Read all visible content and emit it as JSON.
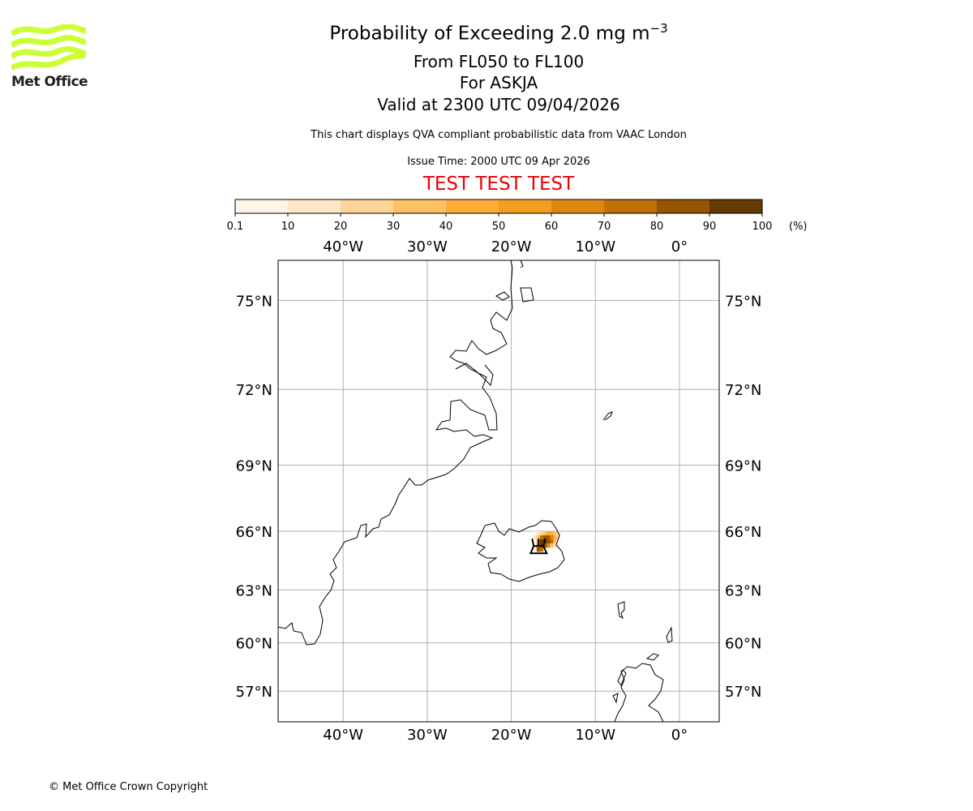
{
  "logo": {
    "text": "Met Office",
    "color": "#ccff33"
  },
  "header": {
    "title_prefix": "Probability of Exceeding 2.0 mg m",
    "title_exponent": "−3",
    "flight_levels": "From FL050 to FL100",
    "volcano": "For ASKJA",
    "valid_time": "Valid at 2300 UTC 09/04/2026",
    "description": "This chart displays QVA compliant probabilistic data from VAAC London",
    "issue_time": "Issue Time: 2000 UTC 09 Apr 2026",
    "test_banner": "TEST TEST TEST",
    "test_color": "#e8000b"
  },
  "footer": {
    "copyright": "© Met Office Crown Copyright"
  },
  "chart_data": {
    "type": "heatmap",
    "title": "Probability of Exceeding 2.0 mg m-3",
    "projection": "mercator",
    "lon_range": [
      -47.7,
      4.7
    ],
    "lat_range": [
      55.7,
      76.3
    ],
    "grid": true,
    "colorbar": {
      "boundaries": [
        "0.1",
        "10",
        "20",
        "30",
        "40",
        "50",
        "60",
        "70",
        "80",
        "90",
        "100"
      ],
      "unit_label": "(%)",
      "colors": [
        "#fff5e6",
        "#fee6c6",
        "#fed496",
        "#fec065",
        "#fdad38",
        "#f49d20",
        "#dc870f",
        "#bf6f05",
        "#955502",
        "#653b02"
      ]
    },
    "lon_ticks": [
      {
        "value": -40,
        "label": "40°W"
      },
      {
        "value": -30,
        "label": "30°W"
      },
      {
        "value": -20,
        "label": "20°W"
      },
      {
        "value": -10,
        "label": "10°W"
      },
      {
        "value": 0,
        "label": "0°"
      }
    ],
    "lat_ticks": [
      {
        "value": 75,
        "label": "75°N"
      },
      {
        "value": 72,
        "label": "72°N"
      },
      {
        "value": 69,
        "label": "69°N"
      },
      {
        "value": 66,
        "label": "66°N"
      },
      {
        "value": 63,
        "label": "63°N"
      },
      {
        "value": 60,
        "label": "60°N"
      },
      {
        "value": 57,
        "label": "57°N"
      }
    ],
    "probability_grid": {
      "lon_start": -17.4,
      "lon_step": 0.4,
      "lat_top": 66.0,
      "lat_step": 0.2,
      "values": [
        [
          5,
          15,
          25,
          35,
          45,
          45,
          35,
          15
        ],
        [
          15,
          35,
          75,
          85,
          85,
          65,
          45,
          15
        ],
        [
          0,
          55,
          95,
          95,
          85,
          75,
          35,
          5
        ],
        [
          0,
          65,
          95,
          85,
          65,
          35,
          15,
          5
        ],
        [
          0,
          85,
          75,
          0,
          0,
          0,
          0,
          0
        ]
      ]
    },
    "volcano_location": {
      "name": "ASKJA",
      "lon": -16.75,
      "lat": 65.03
    }
  }
}
